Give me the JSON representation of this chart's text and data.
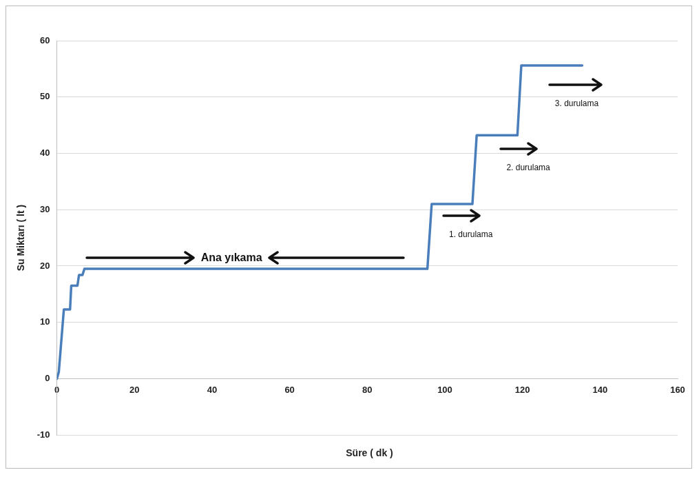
{
  "chart_data": {
    "type": "line",
    "xlabel": "Süre ( dk )",
    "ylabel": "Su Miktarı ( lt )",
    "x": [
      0,
      0.5,
      1.8,
      3.4,
      3.7,
      5.3,
      5.7,
      6.6,
      7.1,
      95.5,
      96.6,
      107.1,
      108.2,
      118.7,
      119.7,
      135.4
    ],
    "series": [
      {
        "color": "#4a7ebb",
        "values": [
          0,
          1.2,
          12.3,
          12.3,
          16.5,
          16.5,
          18.4,
          18.4,
          19.5,
          19.5,
          31,
          31,
          43.2,
          43.2,
          55.6,
          55.6
        ]
      }
    ],
    "xlim": [
      0,
      160
    ],
    "xticks": [
      0,
      20,
      40,
      60,
      80,
      100,
      120,
      140,
      160
    ],
    "ylim": [
      -10,
      60
    ],
    "yticks": [
      -10,
      0,
      10,
      20,
      30,
      40,
      50,
      60
    ],
    "grid": "y",
    "legend": false,
    "marker": "none",
    "line_style": "solid",
    "annotations": [
      "Ana yıkama",
      "1. durulama",
      "2. durulama",
      "3. durulama"
    ]
  }
}
